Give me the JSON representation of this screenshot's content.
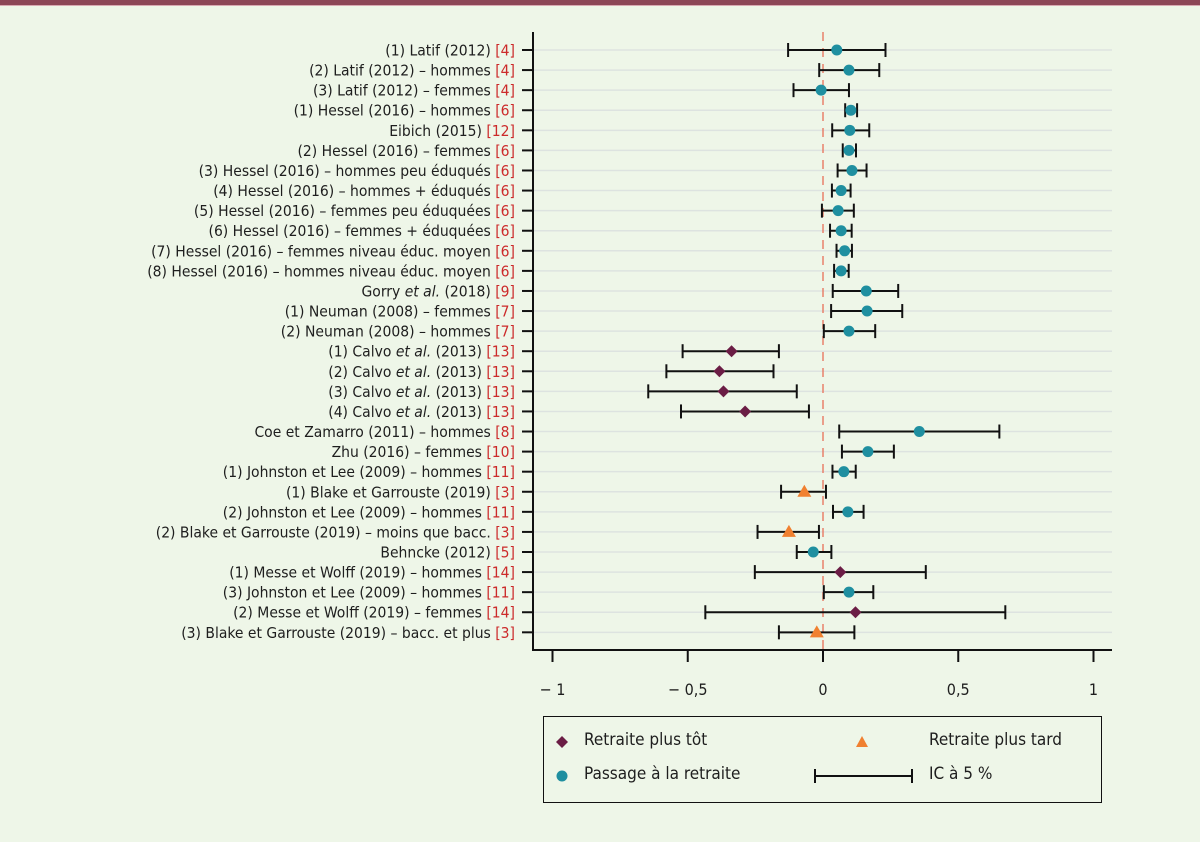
{
  "chart_data": {
    "type": "forest",
    "title": "",
    "xlabel": "",
    "ylabel": "",
    "xlim": [
      -1.05,
      1.07
    ],
    "xticks": [
      -1,
      -0.5,
      0,
      0.5,
      1
    ],
    "xtick_labels": [
      "− 1",
      "− 0,5",
      "0",
      "0,5",
      "1"
    ],
    "reference_line": 0,
    "grid": "horizontal",
    "legend_position": "bottom",
    "colors": {
      "early": "#6b1d45",
      "late": "#f08030",
      "transition": "#1f8fa0",
      "ci": "#111111",
      "refline": "#e8806a",
      "citation": "#cc2a2a"
    },
    "legend": [
      {
        "key": "early",
        "label": "Retraite plus tôt"
      },
      {
        "key": "late",
        "label": "Retraite plus tard"
      },
      {
        "key": "transition",
        "label": "Passage à la retraite"
      },
      {
        "key": "ci",
        "label": "IC à 5 %"
      }
    ],
    "rows": [
      {
        "label": "(1) Latif (2012)",
        "ref": "[4]",
        "type": "transition",
        "est": 0.051,
        "lo": -0.129,
        "hi": 0.231
      },
      {
        "label": "(2) Latif (2012) – hommes",
        "ref": "[4]",
        "type": "transition",
        "est": 0.096,
        "lo": -0.014,
        "hi": 0.208
      },
      {
        "label": "(3) Latif (2012) – femmes",
        "ref": "[4]",
        "type": "transition",
        "est": -0.007,
        "lo": -0.109,
        "hi": 0.096
      },
      {
        "label": "(1) Hessel (2016) – hommes",
        "ref": "[6]",
        "type": "transition",
        "est": 0.103,
        "lo": 0.082,
        "hi": 0.126
      },
      {
        "label": "Eibich (2015)",
        "ref": "[12]",
        "type": "transition",
        "est": 0.099,
        "lo": 0.034,
        "hi": 0.171
      },
      {
        "label": "(2) Hessel (2016) – femmes",
        "ref": "[6]",
        "type": "transition",
        "est": 0.096,
        "lo": 0.073,
        "hi": 0.122
      },
      {
        "label": "(3) Hessel (2016) – hommes peu éduqués",
        "ref": "[6]",
        "type": "transition",
        "est": 0.107,
        "lo": 0.054,
        "hi": 0.161
      },
      {
        "label": "(4) Hessel (2016) – hommes + éduqués",
        "ref": "[6]",
        "type": "transition",
        "est": 0.067,
        "lo": 0.033,
        "hi": 0.102
      },
      {
        "label": "(5) Hessel (2016) – femmes peu éduquées",
        "ref": "[6]",
        "type": "transition",
        "est": 0.056,
        "lo": -0.004,
        "hi": 0.114
      },
      {
        "label": "(6) Hessel (2016) – femmes + éduquées",
        "ref": "[6]",
        "type": "transition",
        "est": 0.067,
        "lo": 0.026,
        "hi": 0.106
      },
      {
        "label": "(7) Hessel (2016) – femmes niveau éduc. moyen",
        "ref": "[6]",
        "type": "transition",
        "est": 0.08,
        "lo": 0.05,
        "hi": 0.107
      },
      {
        "label": "(8) Hessel (2016) – hommes niveau éduc. moyen",
        "ref": "[6]",
        "type": "transition",
        "est": 0.067,
        "lo": 0.041,
        "hi": 0.095
      },
      {
        "label": "Gorry ",
        "italic": "et al.",
        "after": " (2018)",
        "ref": "[9]",
        "type": "transition",
        "est": 0.16,
        "lo": 0.036,
        "hi": 0.278
      },
      {
        "label": "(1) Neuman (2008) – femmes",
        "ref": "[7]",
        "type": "transition",
        "est": 0.163,
        "lo": 0.03,
        "hi": 0.293
      },
      {
        "label": "(2) Neuman (2008) – hommes",
        "ref": "[7]",
        "type": "transition",
        "est": 0.096,
        "lo": 0.003,
        "hi": 0.193
      },
      {
        "label": "(1) Calvo ",
        "italic": "et al.",
        "after": " (2013)",
        "ref": "[13]",
        "type": "early",
        "est": -0.338,
        "lo": -0.519,
        "hi": -0.163
      },
      {
        "label": "(2) Calvo ",
        "italic": "et al.",
        "after": " (2013)",
        "ref": "[13]",
        "type": "early",
        "est": -0.383,
        "lo": -0.579,
        "hi": -0.183
      },
      {
        "label": "(3) Calvo ",
        "italic": "et al.",
        "after": " (2013)",
        "ref": "[13]",
        "type": "early",
        "est": -0.368,
        "lo": -0.646,
        "hi": -0.097
      },
      {
        "label": "(4) Calvo ",
        "italic": "et al.",
        "after": " (2013)",
        "ref": "[13]",
        "type": "early",
        "est": -0.288,
        "lo": -0.525,
        "hi": -0.052
      },
      {
        "label": "Coe et Zamarro (2011) – hommes",
        "ref": "[8]",
        "type": "transition",
        "est": 0.356,
        "lo": 0.06,
        "hi": 0.652
      },
      {
        "label": "Zhu (2016) – femmes",
        "ref": "[10]",
        "type": "transition",
        "est": 0.166,
        "lo": 0.07,
        "hi": 0.262
      },
      {
        "label": "(1) Johnston et Lee (2009) – hommes",
        "ref": "[11]",
        "type": "transition",
        "est": 0.077,
        "lo": 0.035,
        "hi": 0.121
      },
      {
        "label": "(1) Blake et Garrouste (2019)",
        "ref": "[3]",
        "type": "late",
        "est": -0.069,
        "lo": -0.155,
        "hi": 0.011
      },
      {
        "label": "(2) Johnston et Lee (2009) – hommes",
        "ref": "[11]",
        "type": "transition",
        "est": 0.092,
        "lo": 0.037,
        "hi": 0.15
      },
      {
        "label": "(2) Blake et Garrouste (2019) – moins que bacc.",
        "ref": "[3]",
        "type": "late",
        "est": -0.126,
        "lo": -0.242,
        "hi": -0.015
      },
      {
        "label": "Behncke (2012)",
        "ref": "[5]",
        "type": "transition",
        "est": -0.036,
        "lo": -0.097,
        "hi": 0.031
      },
      {
        "label": "(1) Messe et Wolff (2019) – hommes",
        "ref": "[14]",
        "type": "early",
        "est": 0.064,
        "lo": -0.252,
        "hi": 0.38
      },
      {
        "label": "(3) Johnston et Lee (2009) – hommes",
        "ref": "[11]",
        "type": "transition",
        "est": 0.096,
        "lo": 0.003,
        "hi": 0.186
      },
      {
        "label": "(2) Messe et Wolff (2019) – femmes",
        "ref": "[14]",
        "type": "early",
        "est": 0.12,
        "lo": -0.435,
        "hi": 0.674
      },
      {
        "label": "(3) Blake et Garrouste (2019) – bacc. et plus",
        "ref": "[3]",
        "type": "late",
        "est": -0.023,
        "lo": -0.163,
        "hi": 0.116
      }
    ]
  }
}
